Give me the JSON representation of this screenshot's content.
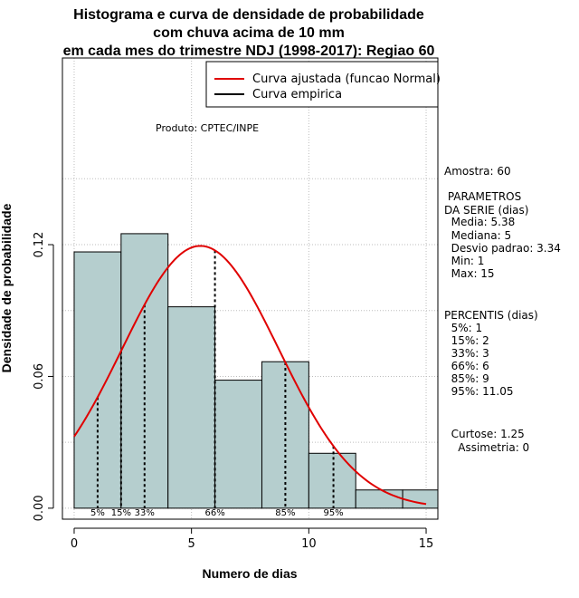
{
  "chart_data": {
    "type": "bar",
    "title_lines": [
      "Histograma e curva de densidade de probabilidade",
      "com chuva acima de 10 mm",
      "em cada mes do trimestre NDJ (1998-2017): Regiao 60"
    ],
    "xlabel": "Numero de dias",
    "ylabel": "Densidade de probabilidade",
    "xlim": [
      -0.5,
      15.5
    ],
    "ylim": [
      -0.005,
      0.205
    ],
    "x_ticks": [
      0,
      5,
      10,
      15
    ],
    "y_ticks": [
      0.0,
      0.06,
      0.12
    ],
    "y_tick_labels": [
      "0.00",
      "0.06",
      "0.12"
    ],
    "grid": true,
    "bar_color": "#b5cece",
    "histogram": {
      "bin_edges": [
        0,
        2,
        4,
        6,
        8,
        10,
        12,
        14,
        16
      ],
      "densities": [
        0.1167,
        0.125,
        0.0917,
        0.0583,
        0.0667,
        0.025,
        0.0083,
        0.0083
      ]
    },
    "normal_curve": {
      "name": "Curva ajustada (funcao Normal)",
      "color": "#e00000",
      "mean": 5.38,
      "sd": 3.34,
      "x_range": [
        0,
        15
      ]
    },
    "empirical_name": "Curva empirica",
    "legend_position": "top-right",
    "product": "Produto: CPTEC/INPE",
    "percentiles": [
      {
        "label": "5%",
        "x": 1
      },
      {
        "label": "15%",
        "x": 2
      },
      {
        "label": "33%",
        "x": 3
      },
      {
        "label": "66%",
        "x": 6
      },
      {
        "label": "85%",
        "x": 9
      },
      {
        "label": "95%",
        "x": 11.05
      }
    ],
    "side_text": [
      "Amostra: 60",
      " PARAMETROS",
      "DA SERIE (dias)",
      "  Media: 5.38",
      "  Mediana: 5",
      "  Desvio padrao: 3.34",
      "  Min: 1",
      "  Max: 15",
      "PERCENTIS (dias)",
      "  5%: 1",
      "  15%: 2",
      "  33%: 3",
      "  66%: 6",
      "  85%: 9",
      "  95%: 11.05",
      "  Curtose: 1.25",
      "    Assimetria: 0"
    ]
  }
}
